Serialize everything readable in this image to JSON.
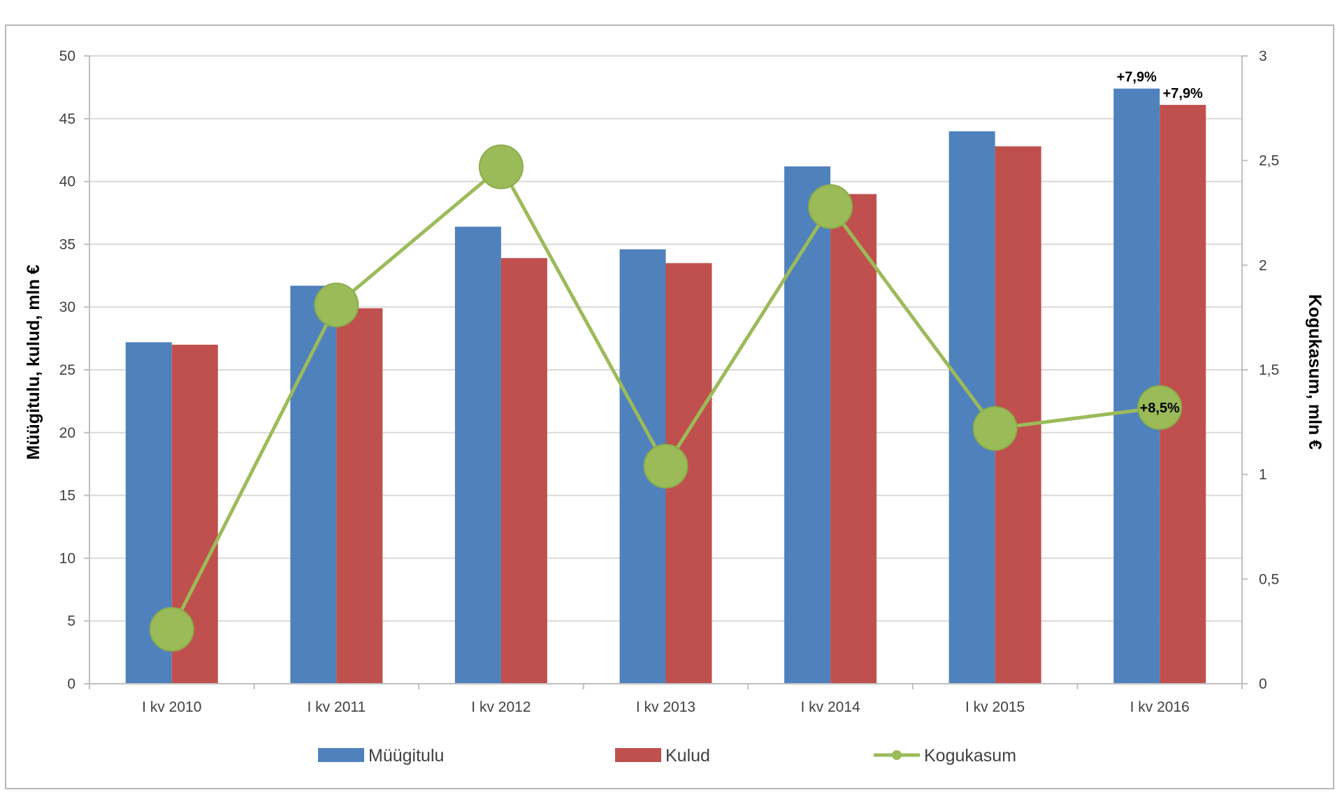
{
  "chart_data": {
    "type": "bar",
    "categories": [
      "I kv 2010",
      "I kv 2011",
      "I kv 2012",
      "I kv 2013",
      "I kv 2014",
      "I kv 2015",
      "I kv 2016"
    ],
    "series": [
      {
        "name": "Müügitulu",
        "kind": "bar",
        "axis": "left",
        "color": "#4f81bd",
        "values": [
          27.2,
          31.7,
          36.4,
          34.6,
          41.2,
          44.0,
          47.4
        ]
      },
      {
        "name": "Kulud",
        "kind": "bar",
        "axis": "left",
        "color": "#c0504d",
        "values": [
          27.0,
          29.9,
          33.9,
          33.5,
          39.0,
          42.8,
          46.1
        ]
      },
      {
        "name": "Kogukasum",
        "kind": "line",
        "axis": "right",
        "color": "#9bbb59",
        "values": [
          0.26,
          1.81,
          2.47,
          1.04,
          2.28,
          1.22,
          1.32
        ]
      }
    ],
    "ylabel": "Müügitulu, kulud, mln €",
    "y2label": "Kogukasum, mln €",
    "ylim": [
      0,
      50
    ],
    "y2lim": [
      0,
      3
    ],
    "yticks": [
      "0",
      "5",
      "10",
      "15",
      "20",
      "25",
      "30",
      "35",
      "40",
      "45",
      "50"
    ],
    "y2ticks": [
      "0",
      "0,5",
      "1",
      "1,5",
      "2",
      "2,5",
      "3"
    ],
    "grid": true,
    "legend_position": "bottom",
    "annotations": [
      {
        "series": "Müügitulu",
        "category": "I kv 2016",
        "text": "+7,9%"
      },
      {
        "series": "Kulud",
        "category": "I kv 2016",
        "text": "+7,9%"
      },
      {
        "series": "Kogukasum",
        "category": "I kv 2016",
        "text": "+8,5%"
      }
    ]
  }
}
